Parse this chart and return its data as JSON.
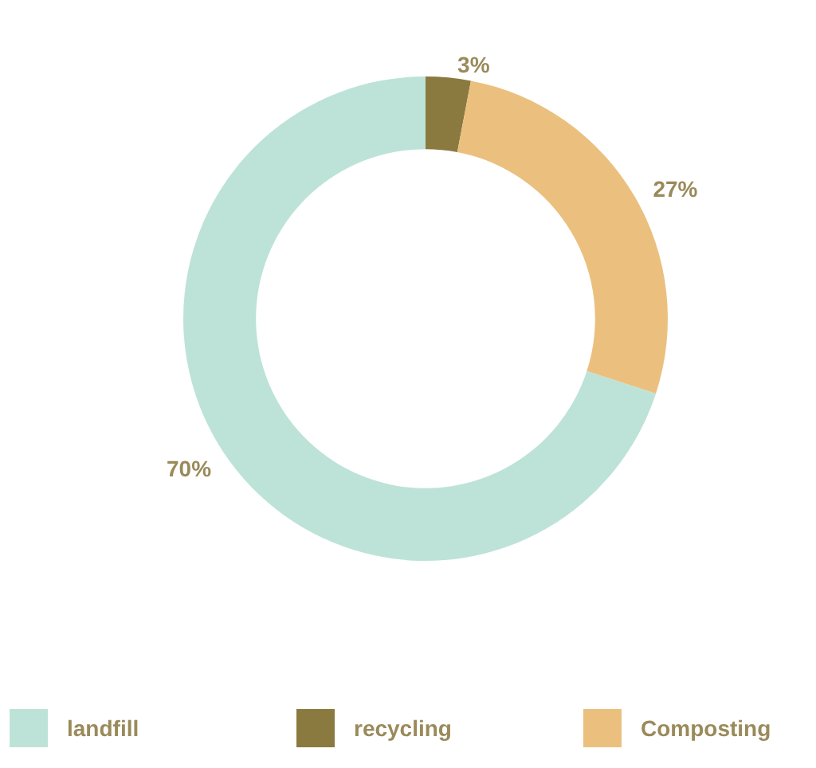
{
  "chart_data": {
    "type": "donut",
    "categories": [
      "landfill",
      "recycling",
      "Composting"
    ],
    "values": [
      70,
      3,
      27
    ],
    "colors": [
      "#bde3d8",
      "#8b7a3f",
      "#ebc07e"
    ],
    "value_labels": [
      "70%",
      "3%",
      "27%"
    ],
    "data_labels": true,
    "legend": "bottom"
  }
}
